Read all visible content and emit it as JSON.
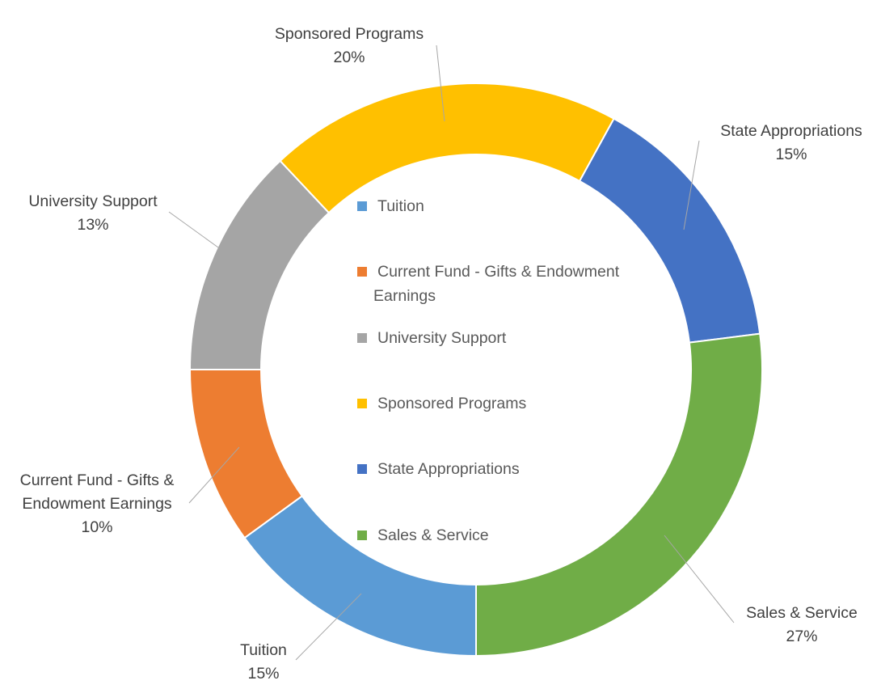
{
  "chart_data": {
    "type": "pie",
    "variant": "doughnut",
    "title": "",
    "legend_position": "center",
    "slices": [
      {
        "name": "Tuition",
        "value": 15,
        "label": "15%",
        "color": "#5b9bd5"
      },
      {
        "name": "Current Fund - Gifts & Endowment Earnings",
        "value": 10,
        "label": "10%",
        "color": "#ed7d31"
      },
      {
        "name": "University Support",
        "value": 13,
        "label": "13%",
        "color": "#a5a5a5"
      },
      {
        "name": "Sponsored Programs",
        "value": 20,
        "label": "20%",
        "color": "#ffc000"
      },
      {
        "name": "State Appropriations",
        "value": 15,
        "label": "15%",
        "color": "#4472c4"
      },
      {
        "name": "Sales & Service",
        "value": 27,
        "label": "27%",
        "color": "#70ad47"
      }
    ],
    "data_label_lines": [
      [
        "Tuition"
      ],
      [
        "Current Fund - Gifts &",
        "Endowment Earnings"
      ],
      [
        "University Support"
      ],
      [
        "Sponsored Programs"
      ],
      [
        "State Appropriations"
      ],
      [
        "Sales & Service"
      ]
    ],
    "legend_lines": [
      [
        "Tuition"
      ],
      [
        "Current Fund - Gifts & Endowment",
        "Earnings"
      ],
      [
        "University Support"
      ],
      [
        "Sponsored Programs"
      ],
      [
        "State Appropriations"
      ],
      [
        "Sales & Service"
      ]
    ]
  }
}
